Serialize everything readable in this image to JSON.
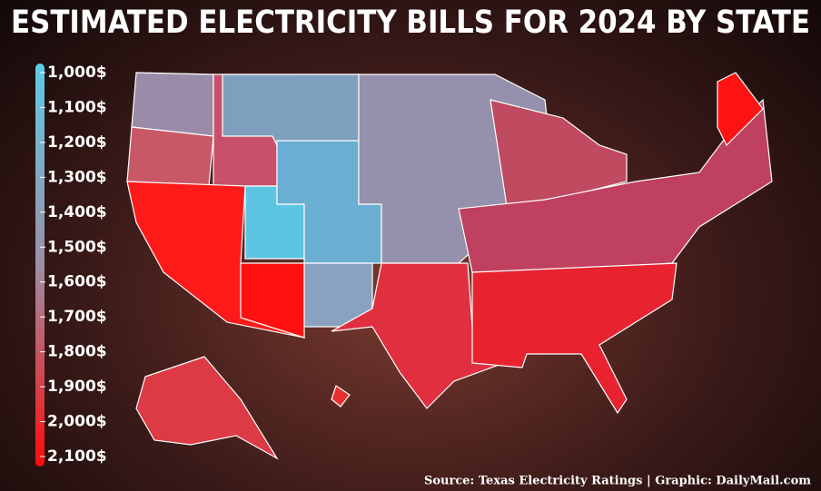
{
  "title": "ESTIMATED ELECTRICITY BILLS FOR 2024 BY STATE",
  "legend": {
    "range": [
      1000,
      2100
    ],
    "ticks": [
      {
        "value": 1000,
        "label": "1,000$"
      },
      {
        "value": 1100,
        "label": "1,100$"
      },
      {
        "value": 1200,
        "label": "1,200$"
      },
      {
        "value": 1300,
        "label": "1,300$"
      },
      {
        "value": 1400,
        "label": "1,400$"
      },
      {
        "value": 1500,
        "label": "1,500$"
      },
      {
        "value": 1600,
        "label": "1,600$"
      },
      {
        "value": 1700,
        "label": "1,700$"
      },
      {
        "value": 1800,
        "label": "1,800$"
      },
      {
        "value": 1900,
        "label": "1,900$"
      },
      {
        "value": 2000,
        "label": "2,000$"
      },
      {
        "value": 2100,
        "label": "2,100$"
      }
    ],
    "colors": [
      "#5ccbe8",
      "#9c8fa6",
      "#ff0a0a"
    ]
  },
  "source": "Source: Texas Electricity Ratings  |  Graphic: DailyMail.com"
}
